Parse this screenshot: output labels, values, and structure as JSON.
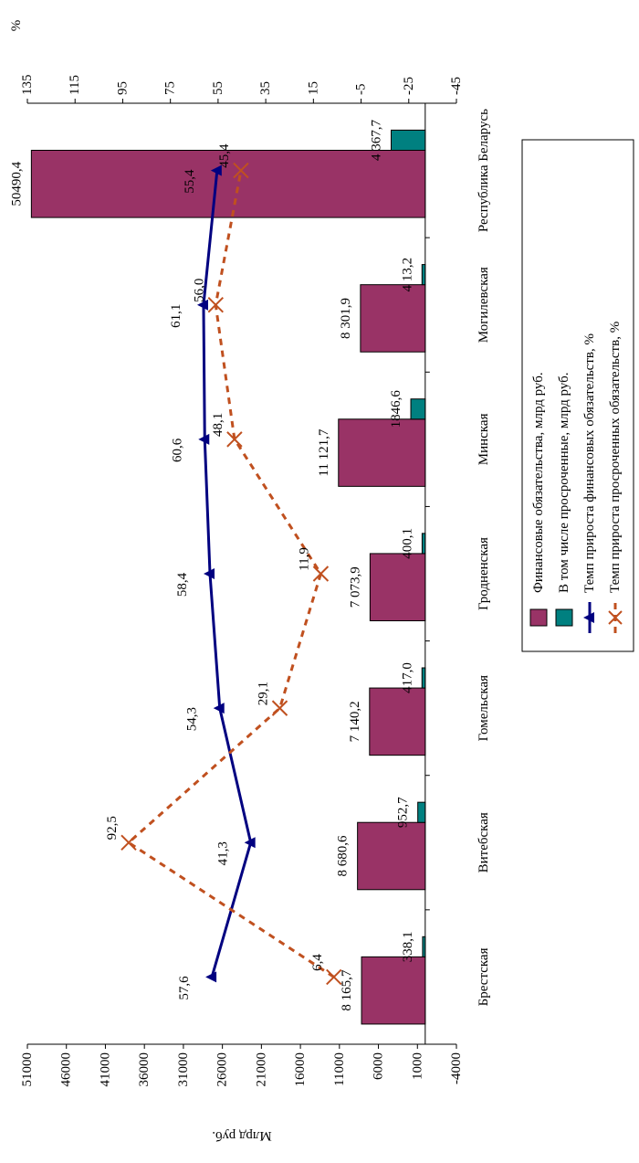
{
  "chart_data": {
    "type": "bar-line",
    "y_axis_label": "Млрд руб.",
    "y2_axis_label": "%",
    "categories": [
      "Брестская",
      "Витебская",
      "Гомельская",
      "Гродненская",
      "Минская",
      "Могилевская",
      "Республика Беларусь"
    ],
    "ylim": [
      -4000,
      51000
    ],
    "yticks": [
      -4000,
      1000,
      6000,
      11000,
      16000,
      21000,
      26000,
      31000,
      36000,
      41000,
      46000,
      51000
    ],
    "y2lim": [
      -45,
      135
    ],
    "y2ticks": [
      -45,
      -25,
      -5,
      15,
      35,
      55,
      75,
      95,
      115,
      135
    ],
    "series": [
      {
        "name": "Финансовые обязательства, млрд руб.",
        "kind": "bar",
        "color": "#993366",
        "values": [
          8165.7,
          8680.6,
          7140.2,
          7073.9,
          11121.7,
          8301.9,
          50490.4
        ],
        "value_labels": [
          "8 165,7",
          "8 680,6",
          "7 140,2",
          "7 073,9",
          "11 121,7",
          "8 301,9",
          "50490,4"
        ]
      },
      {
        "name": "В том числе просроченные, млрд руб.",
        "kind": "bar",
        "color": "#008080",
        "values": [
          338.1,
          952.7,
          417.0,
          400.1,
          1846.6,
          413.2,
          4367.7
        ],
        "value_labels": [
          "338,1",
          "952,7",
          "417,0",
          "400,1",
          "1846,6",
          "4 13,2",
          "4 367,7"
        ]
      },
      {
        "name": "Темп прироста финансовых обязательств, %",
        "kind": "line",
        "axis": "y2",
        "color": "#000080",
        "values": [
          57.6,
          41.3,
          54.3,
          58.4,
          60.6,
          61.1,
          55.4
        ],
        "value_labels": [
          "57,6",
          "41,3",
          "54,3",
          "58,4",
          "60,6",
          "61,1",
          "55,4"
        ]
      },
      {
        "name": "Темп прироста просроченных обязательств, %",
        "kind": "line",
        "axis": "y2",
        "color": "#c0501f",
        "dashed": true,
        "values": [
          6.4,
          92.5,
          29.1,
          11.9,
          48.1,
          56.0,
          45.4
        ],
        "value_labels": [
          "6,4",
          "92,5",
          "29,1",
          "11,9",
          "48,1",
          "56,0",
          "45,4"
        ]
      }
    ]
  }
}
